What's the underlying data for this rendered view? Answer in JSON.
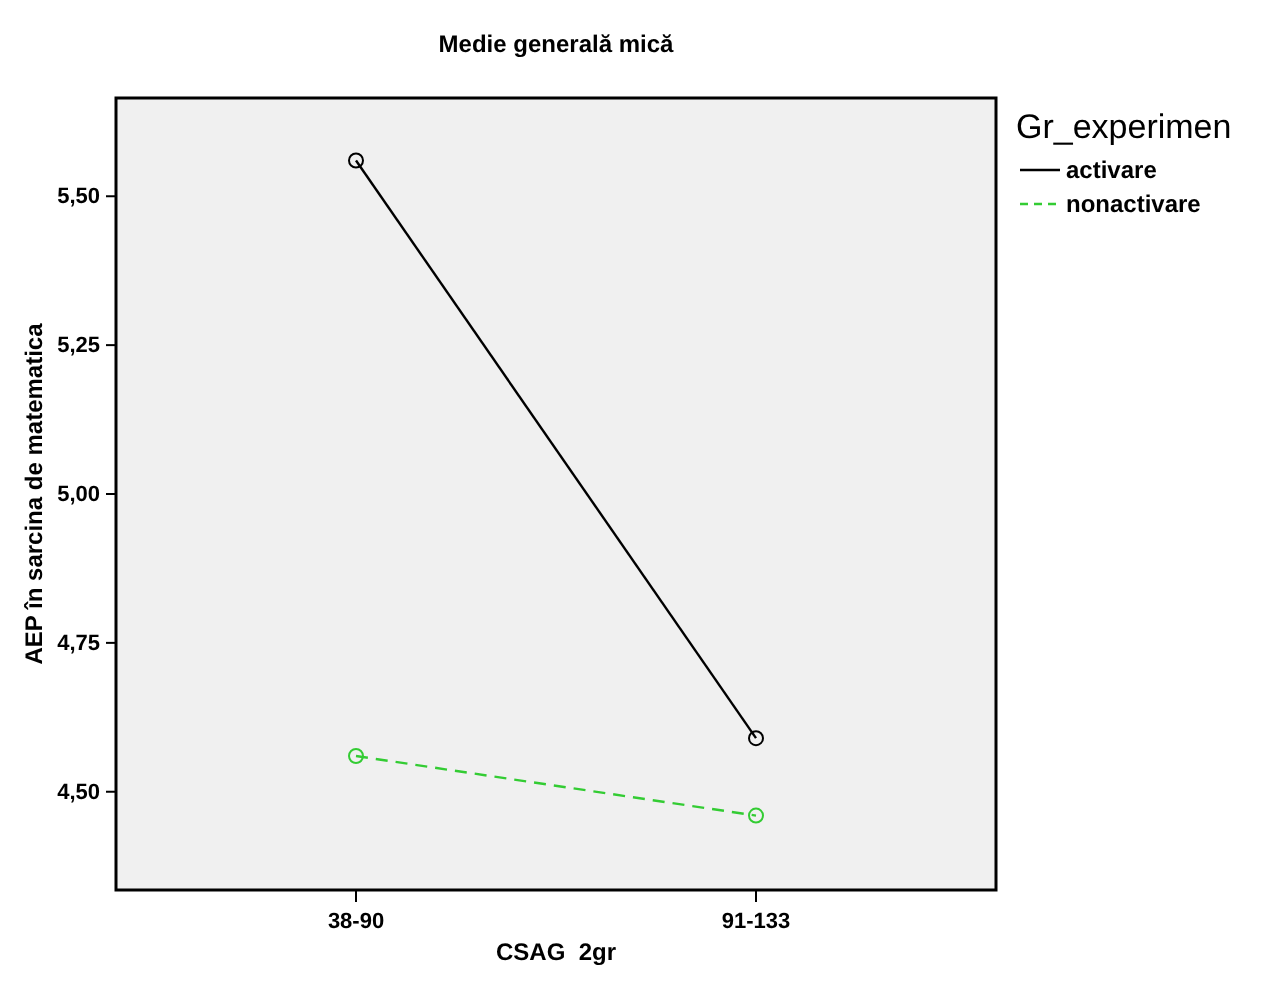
{
  "chart_data": {
    "type": "line",
    "title": "Medie generală mică",
    "xlabel": "CSAG  2gr",
    "ylabel": "AEP în sarcina de matematica",
    "legend_title": "Gr_experimen",
    "legend": "top right",
    "marker": "circle",
    "grid": false,
    "categories": [
      "38-90",
      "91-133"
    ],
    "ylim": [
      4.335,
      5.665
    ],
    "yticks": [
      {
        "value": 4.5,
        "label": "4,50"
      },
      {
        "value": 4.75,
        "label": "4,75"
      },
      {
        "value": 5,
        "label": "5,00"
      },
      {
        "value": 5.25,
        "label": "5,25"
      },
      {
        "value": 5.5,
        "label": "5,50"
      }
    ],
    "series": [
      {
        "name": "activare",
        "color": "#000000",
        "line_style": "solid",
        "values": [
          5.56,
          4.59
        ]
      },
      {
        "name": "nonactivare",
        "color": "#33cc33",
        "line_style": "dashed",
        "values": [
          4.56,
          4.46
        ]
      }
    ]
  }
}
